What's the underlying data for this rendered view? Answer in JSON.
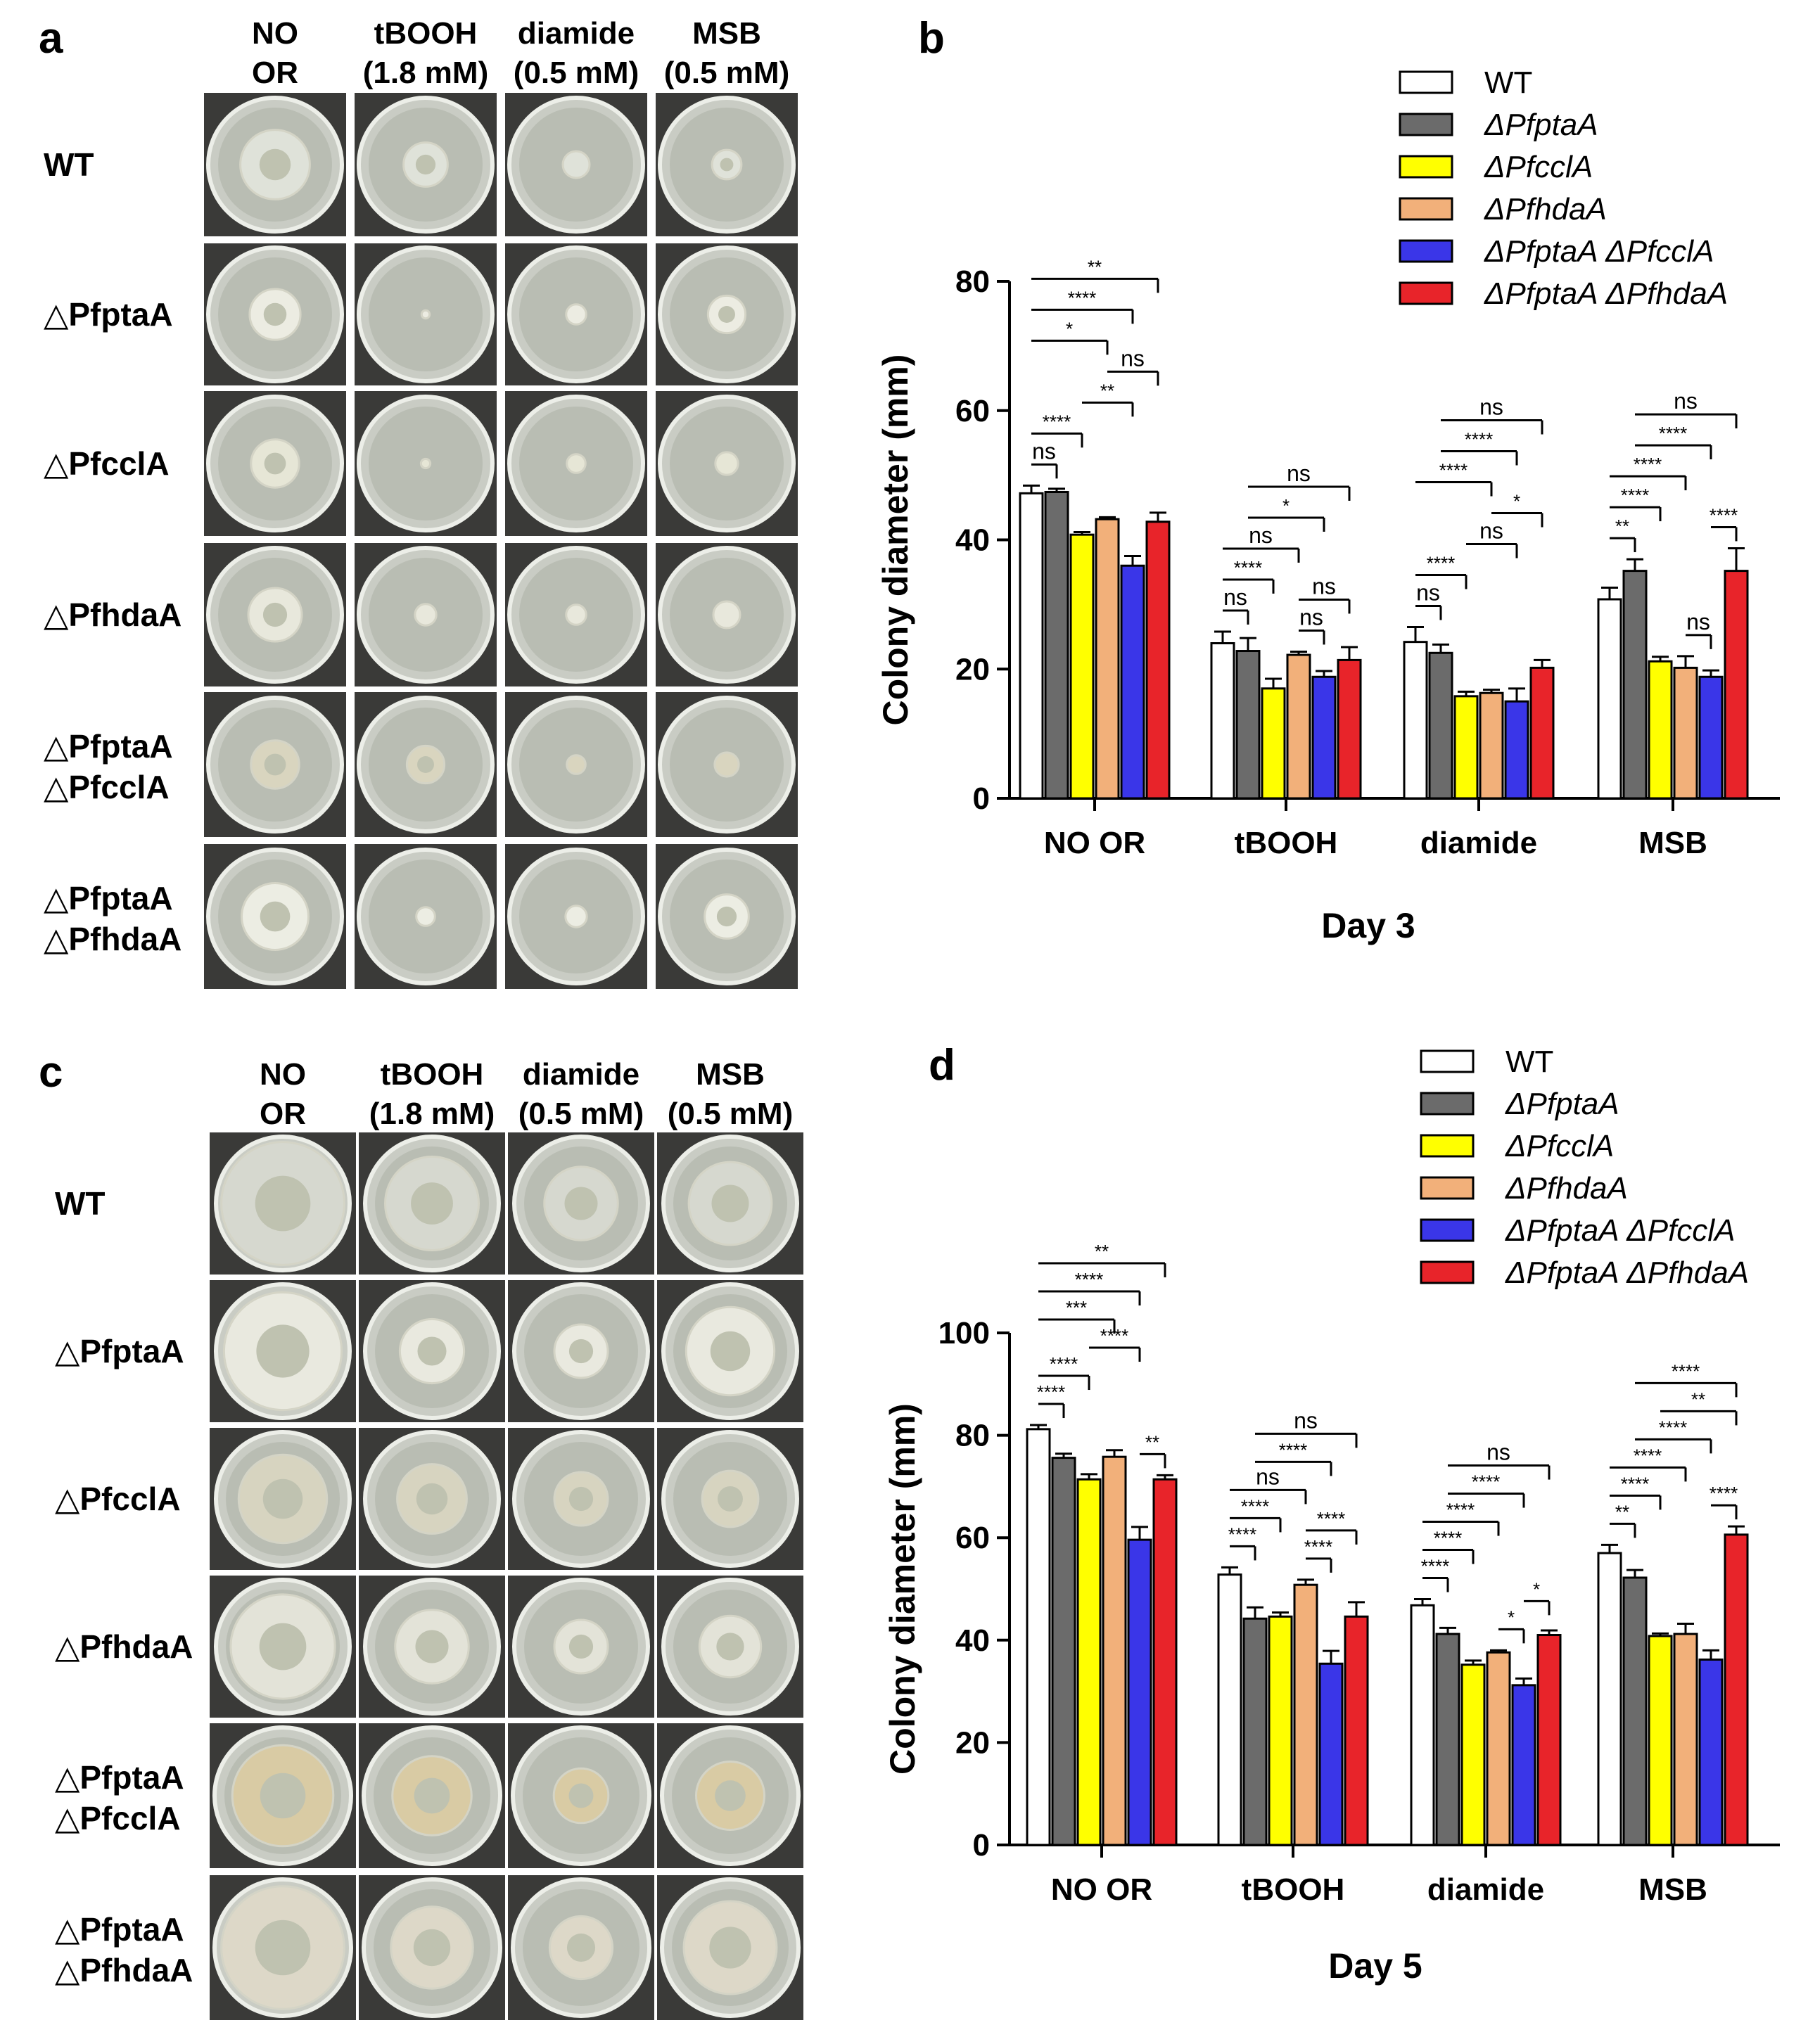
{
  "figure": {
    "panel_labels": [
      "a",
      "b",
      "c",
      "d"
    ],
    "plate_panels": [
      {
        "panel": "a",
        "column_headers": [
          {
            "line1": "NO",
            "line2": "OR"
          },
          {
            "line1": "tBOOH",
            "line2": "(1.8 mM)"
          },
          {
            "line1": "diamide",
            "line2": "(0.5 mM)"
          },
          {
            "line1": "MSB",
            "line2": "(0.5 mM)"
          }
        ],
        "rows": [
          {
            "line1": "WT",
            "line2": ""
          },
          {
            "line1": "△PfptaA",
            "line2": ""
          },
          {
            "line1": "△PfcclA",
            "line2": ""
          },
          {
            "line1": "△PfhdaA",
            "line2": ""
          },
          {
            "line1": "△PfptaA",
            "line2": "△PfcclA"
          },
          {
            "line1": "△PfptaA",
            "line2": "△PfhdaA"
          }
        ]
      },
      {
        "panel": "c",
        "column_headers": [
          {
            "line1": "NO",
            "line2": "OR"
          },
          {
            "line1": "tBOOH",
            "line2": "(1.8 mM)"
          },
          {
            "line1": "diamide",
            "line2": "(0.5 mM)"
          },
          {
            "line1": "MSB",
            "line2": "(0.5 mM)"
          }
        ],
        "rows": [
          {
            "line1": "WT",
            "line2": ""
          },
          {
            "line1": "△PfptaA",
            "line2": ""
          },
          {
            "line1": "△PfcclA",
            "line2": ""
          },
          {
            "line1": "△PfhdaA",
            "line2": ""
          },
          {
            "line1": "△PfptaA",
            "line2": "△PfcclA"
          },
          {
            "line1": "△PfptaA",
            "line2": "△PfhdaA"
          }
        ]
      }
    ]
  },
  "chart_data": [
    {
      "panel": "b",
      "type": "bar",
      "title": "",
      "xlabel": "Day 3",
      "ylabel": "Colony diameter (mm)",
      "ylim": [
        0,
        80
      ],
      "yticks": [
        0,
        20,
        40,
        60,
        80
      ],
      "categories": [
        "NO OR",
        "tBOOH",
        "diamide",
        "MSB"
      ],
      "series": [
        {
          "name": "WT",
          "color": "#ffffff",
          "values": [
            47.2,
            24.0,
            24.2,
            30.8
          ],
          "errors": [
            1.2,
            1.8,
            2.3,
            1.8
          ]
        },
        {
          "name": "ΔPfptaA",
          "color": "#6b6b6b",
          "values": [
            47.4,
            22.8,
            22.5,
            35.2
          ],
          "errors": [
            0.5,
            2.0,
            1.3,
            1.8
          ]
        },
        {
          "name": "ΔPfcclA",
          "color": "#ffff00",
          "values": [
            40.8,
            17.0,
            15.8,
            21.2
          ],
          "errors": [
            0.4,
            1.5,
            0.7,
            0.7
          ]
        },
        {
          "name": "ΔPfhdaA",
          "color": "#f2b07a",
          "values": [
            43.2,
            22.2,
            16.3,
            20.2
          ],
          "errors": [
            0.3,
            0.5,
            0.5,
            1.8
          ]
        },
        {
          "name": "ΔPfptaA ΔPfcclA",
          "color": "#3a36e8",
          "values": [
            36.0,
            18.8,
            15.0,
            18.8
          ],
          "errors": [
            1.5,
            0.9,
            2.0,
            1.0
          ]
        },
        {
          "name": "ΔPfptaA ΔPfhdaA",
          "color": "#e8242a",
          "values": [
            42.8,
            21.4,
            20.2,
            35.2
          ],
          "errors": [
            1.4,
            2.0,
            1.2,
            3.5
          ]
        }
      ],
      "significance": [
        {
          "category": "NO OR",
          "from": 0,
          "to": 1,
          "label": "ns"
        },
        {
          "category": "NO OR",
          "from": 0,
          "to": 2,
          "label": "****"
        },
        {
          "category": "NO OR",
          "from": 0,
          "to": 3,
          "label": "*"
        },
        {
          "category": "NO OR",
          "from": 0,
          "to": 4,
          "label": "****"
        },
        {
          "category": "NO OR",
          "from": 0,
          "to": 5,
          "label": "**"
        },
        {
          "category": "NO OR",
          "from": 2,
          "to": 4,
          "label": "**"
        },
        {
          "category": "NO OR",
          "from": 3,
          "to": 5,
          "label": "ns"
        },
        {
          "category": "tBOOH",
          "from": 0,
          "to": 1,
          "label": "ns"
        },
        {
          "category": "tBOOH",
          "from": 0,
          "to": 2,
          "label": "****"
        },
        {
          "category": "tBOOH",
          "from": 0,
          "to": 3,
          "label": "ns"
        },
        {
          "category": "tBOOH",
          "from": 1,
          "to": 4,
          "label": "*"
        },
        {
          "category": "tBOOH",
          "from": 1,
          "to": 5,
          "label": "ns"
        },
        {
          "category": "tBOOH",
          "from": 3,
          "to": 4,
          "label": "ns"
        },
        {
          "category": "tBOOH",
          "from": 3,
          "to": 5,
          "label": "ns"
        },
        {
          "category": "diamide",
          "from": 0,
          "to": 1,
          "label": "ns"
        },
        {
          "category": "diamide",
          "from": 0,
          "to": 2,
          "label": "****"
        },
        {
          "category": "diamide",
          "from": 0,
          "to": 3,
          "label": "****"
        },
        {
          "category": "diamide",
          "from": 1,
          "to": 4,
          "label": "****"
        },
        {
          "category": "diamide",
          "from": 1,
          "to": 5,
          "label": "ns"
        },
        {
          "category": "diamide",
          "from": 2,
          "to": 4,
          "label": "ns"
        },
        {
          "category": "diamide",
          "from": 3,
          "to": 5,
          "label": "*"
        },
        {
          "category": "MSB",
          "from": 0,
          "to": 1,
          "label": "**"
        },
        {
          "category": "MSB",
          "from": 0,
          "to": 2,
          "label": "****"
        },
        {
          "category": "MSB",
          "from": 0,
          "to": 3,
          "label": "****"
        },
        {
          "category": "MSB",
          "from": 1,
          "to": 4,
          "label": "****"
        },
        {
          "category": "MSB",
          "from": 1,
          "to": 5,
          "label": "ns"
        },
        {
          "category": "MSB",
          "from": 3,
          "to": 4,
          "label": "ns"
        },
        {
          "category": "MSB",
          "from": 4,
          "to": 5,
          "label": "****"
        }
      ]
    },
    {
      "panel": "d",
      "type": "bar",
      "title": "",
      "xlabel": "Day 5",
      "ylabel": "Colony diameter (mm)",
      "ylim": [
        0,
        100
      ],
      "yticks": [
        0,
        20,
        40,
        60,
        80,
        100
      ],
      "categories": [
        "NO OR",
        "tBOOH",
        "diamide",
        "MSB"
      ],
      "series": [
        {
          "name": "WT",
          "color": "#ffffff",
          "values": [
            81.2,
            52.8,
            46.8,
            57.0
          ],
          "errors": [
            0.8,
            1.4,
            1.2,
            1.6
          ]
        },
        {
          "name": "ΔPfptaA",
          "color": "#6b6b6b",
          "values": [
            75.6,
            44.2,
            41.2,
            52.2
          ],
          "errors": [
            0.8,
            2.2,
            1.2,
            1.5
          ]
        },
        {
          "name": "ΔPfcclA",
          "color": "#ffff00",
          "values": [
            71.4,
            44.6,
            35.2,
            40.8
          ],
          "errors": [
            1.0,
            0.8,
            0.8,
            0.5
          ]
        },
        {
          "name": "ΔPfhdaA",
          "color": "#f2b07a",
          "values": [
            75.8,
            50.8,
            37.6,
            41.2
          ],
          "errors": [
            1.3,
            1.0,
            0.4,
            2.0
          ]
        },
        {
          "name": "ΔPfptaA ΔPfcclA",
          "color": "#3a36e8",
          "values": [
            59.6,
            35.4,
            31.2,
            36.2
          ],
          "errors": [
            2.5,
            2.5,
            1.3,
            1.8
          ]
        },
        {
          "name": "ΔPfptaA ΔPfhdaA",
          "color": "#e8242a",
          "values": [
            71.4,
            44.6,
            41.0,
            60.6
          ],
          "errors": [
            0.8,
            2.8,
            0.9,
            1.6
          ]
        }
      ],
      "significance": [
        {
          "category": "NO OR",
          "from": 0,
          "to": 1,
          "label": "****"
        },
        {
          "category": "NO OR",
          "from": 0,
          "to": 2,
          "label": "****"
        },
        {
          "category": "NO OR",
          "from": 0,
          "to": 3,
          "label": "***"
        },
        {
          "category": "NO OR",
          "from": 0,
          "to": 4,
          "label": "****"
        },
        {
          "category": "NO OR",
          "from": 0,
          "to": 5,
          "label": "**"
        },
        {
          "category": "NO OR",
          "from": 2,
          "to": 4,
          "label": "****"
        },
        {
          "category": "NO OR",
          "from": 4,
          "to": 5,
          "label": "**"
        },
        {
          "category": "tBOOH",
          "from": 0,
          "to": 1,
          "label": "****"
        },
        {
          "category": "tBOOH",
          "from": 0,
          "to": 2,
          "label": "****"
        },
        {
          "category": "tBOOH",
          "from": 0,
          "to": 3,
          "label": "ns"
        },
        {
          "category": "tBOOH",
          "from": 1,
          "to": 4,
          "label": "****"
        },
        {
          "category": "tBOOH",
          "from": 1,
          "to": 5,
          "label": "ns"
        },
        {
          "category": "tBOOH",
          "from": 3,
          "to": 4,
          "label": "****"
        },
        {
          "category": "tBOOH",
          "from": 3,
          "to": 5,
          "label": "****"
        },
        {
          "category": "diamide",
          "from": 0,
          "to": 1,
          "label": "****"
        },
        {
          "category": "diamide",
          "from": 0,
          "to": 2,
          "label": "****"
        },
        {
          "category": "diamide",
          "from": 0,
          "to": 3,
          "label": "****"
        },
        {
          "category": "diamide",
          "from": 1,
          "to": 4,
          "label": "****"
        },
        {
          "category": "diamide",
          "from": 1,
          "to": 5,
          "label": "ns"
        },
        {
          "category": "diamide",
          "from": 3,
          "to": 4,
          "label": "*"
        },
        {
          "category": "diamide",
          "from": 4,
          "to": 5,
          "label": "*"
        },
        {
          "category": "MSB",
          "from": 0,
          "to": 1,
          "label": "**"
        },
        {
          "category": "MSB",
          "from": 0,
          "to": 2,
          "label": "****"
        },
        {
          "category": "MSB",
          "from": 0,
          "to": 3,
          "label": "****"
        },
        {
          "category": "MSB",
          "from": 1,
          "to": 4,
          "label": "****"
        },
        {
          "category": "MSB",
          "from": 1,
          "to": 5,
          "label": "****"
        },
        {
          "category": "MSB",
          "from": 2,
          "to": 5,
          "label": "**"
        },
        {
          "category": "MSB",
          "from": 4,
          "to": 5,
          "label": "****"
        }
      ]
    }
  ]
}
